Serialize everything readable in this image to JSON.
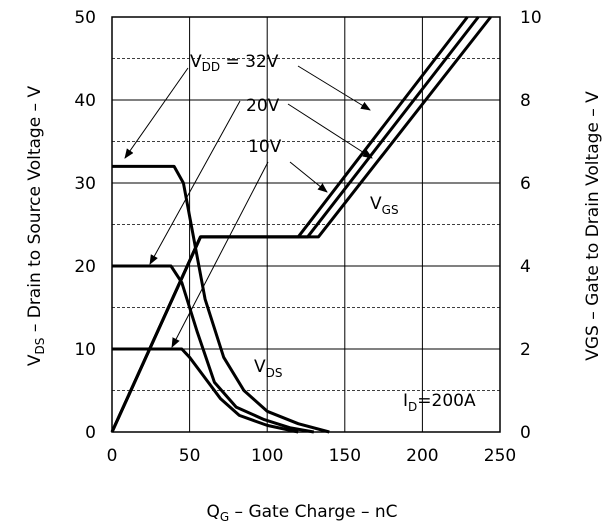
{
  "chart_data": {
    "type": "line",
    "x_axis": {
      "label_main": "Q",
      "label_sub": "G",
      "label_rest": " – Gate Charge – nC",
      "lim": [
        0,
        250
      ],
      "ticks": [
        0,
        50,
        100,
        150,
        200,
        250
      ]
    },
    "y_axis_left": {
      "label_main": "V",
      "label_sub": "DS",
      "label_rest": " – Drain to Source Voltage – V",
      "lim": [
        0,
        50
      ],
      "ticks": [
        0,
        10,
        20,
        30,
        40,
        50
      ]
    },
    "y_axis_right": {
      "label": "VGS – Gate to Drain Voltage – V",
      "lim": [
        0,
        10
      ],
      "ticks": [
        0,
        2,
        4,
        6,
        8,
        10
      ]
    },
    "grid": true,
    "series": [
      {
        "group": "VDS",
        "condition": "32V",
        "axis": "left",
        "points": [
          [
            0,
            32
          ],
          [
            40,
            32
          ],
          [
            46,
            30
          ],
          [
            52,
            24
          ],
          [
            60,
            16
          ],
          [
            72,
            9
          ],
          [
            85,
            5
          ],
          [
            100,
            2.5
          ],
          [
            120,
            1
          ],
          [
            140,
            0
          ]
        ]
      },
      {
        "group": "VDS",
        "condition": "20V",
        "axis": "left",
        "points": [
          [
            0,
            20
          ],
          [
            38,
            20
          ],
          [
            45,
            18
          ],
          [
            55,
            12
          ],
          [
            66,
            6
          ],
          [
            80,
            3
          ],
          [
            98,
            1.5
          ],
          [
            115,
            0.5
          ],
          [
            130,
            0
          ]
        ]
      },
      {
        "group": "VDS",
        "condition": "10V",
        "axis": "left",
        "points": [
          [
            0,
            10
          ],
          [
            45,
            10
          ],
          [
            50,
            9
          ],
          [
            58,
            7
          ],
          [
            70,
            4
          ],
          [
            82,
            2
          ],
          [
            100,
            0.8
          ],
          [
            120,
            0
          ]
        ]
      },
      {
        "group": "VGS",
        "condition": "32V",
        "axis": "right",
        "points": [
          [
            0,
            0
          ],
          [
            57,
            4.7
          ],
          [
            133,
            4.7
          ],
          [
            244,
            10
          ]
        ]
      },
      {
        "group": "VGS",
        "condition": "20V",
        "axis": "right",
        "points": [
          [
            0,
            0
          ],
          [
            57,
            4.7
          ],
          [
            126,
            4.7
          ],
          [
            236,
            10
          ]
        ]
      },
      {
        "group": "VGS",
        "condition": "10V",
        "axis": "right",
        "points": [
          [
            0,
            0
          ],
          [
            57,
            4.7
          ],
          [
            120,
            4.7
          ],
          [
            229,
            10
          ]
        ]
      }
    ],
    "annotations": {
      "vdd": {
        "main": "V",
        "sub": "DD",
        "rest": " = 32V"
      },
      "v20": "20V",
      "v10": "10V",
      "vgs": {
        "main": "V",
        "sub": "GS"
      },
      "vds": {
        "main": "V",
        "sub": "DS"
      },
      "id": {
        "main": "I",
        "sub": "D",
        "rest": "=200A"
      }
    }
  }
}
